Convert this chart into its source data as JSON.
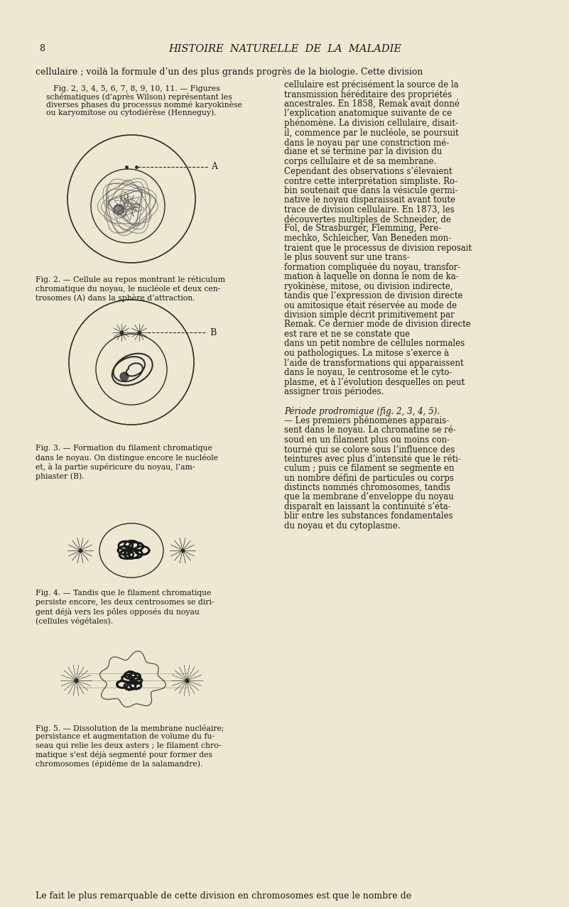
{
  "background_color": "#f0ead8",
  "page_color": "#ede8d2",
  "text_color": "#1a1a1a",
  "line_color": "#2a2a2a",
  "page_number": "8",
  "header": "HISTOIRE  NATURELLE  DE  LA  MALADIE",
  "first_line": "cellulaire ; voilà la formule d’un des plus grands progrès de la biologie. Cette division",
  "caption_fig2_label": "Fig. 2, 3, 4, 5, 6, 7, 8, 9, 10, 11. — Figures",
  "caption_fig2_line2": "schématiques (d’après Wilson) représentant les",
  "caption_fig2_line3": "diverses phases du processus nommé karyokinèse",
  "caption_fig2_line4": "ou karyomitose ou cytodiérèse (Henneguy).",
  "fig2_caption_lines": [
    "Fig. 2. — Cellule au repos montrant le réticulum",
    "chromatique du noyau, le nucléole et deux cen-",
    "trosomes (A) dans la sphère d’attraction."
  ],
  "fig3_caption_lines": [
    "Fig. 3. — Formation du filament chromatique",
    "dans le noyau. On distingue encore le nucléole",
    "et, à la partie supéricure du noyau, l’am-",
    "phiaster (B)."
  ],
  "fig4_caption_lines": [
    "Fig. 4. — Tandis que le filament chromatique",
    "persiste encore, les deux centrosomes se diri-",
    "gent déjà vers les pôles opposés du noyau",
    "(cellules végétales)."
  ],
  "fig5_caption_lines": [
    "Fig. 5. — Dissolution de la membrane nucléaire;",
    "persistance et augmentation de volume du fu-",
    "seau qui relie les deux asters ; le filament chro-",
    "matique s’est déjà segmenté pour former des",
    "chromosomes (épidème de la salamandre)."
  ],
  "right_col_text": [
    "cellulaire est précisément la source de la",
    "transmission héréditaire des propriétés",
    "ancestrales. En 1858, Remak avait donné",
    "l’explication anatomique suivante de ce",
    "phénomène. La division cellulaire, disait-",
    "il, commence par le nucléole, se poursuit",
    "dans le noyau par une constriction mé-",
    "diane et se termine par la division du",
    "corps cellulaire et de sa membrane.",
    "Cependant des observations s’élevaient",
    "contre cette interprétation simpliste. Ro-",
    "bin soutenait que dans la vésicule germi-",
    "native le noyau disparaissait avant toute",
    "trace de division cellulaire. En 1873, les",
    "découvertes multiples de Schneider, de",
    "Fol, de Strasburger, Flemming, Pere-",
    "mechko, Schleicher, Van Beneden mon-",
    "traient que le processus de division reposait",
    "le plus souvent sur une trans-",
    "formation compliquée du noyau, transfor-",
    "mation à laquelle on donna le nom de ka-",
    "ryokinèse, mitose, ou division indirecte,",
    "tandis que l’expression de division directe",
    "ou amitosique était réservée au mode de",
    "division simple décrit primitivement par",
    "Remak. Ce dernier mode de division directe",
    "est rare et ne se constate que",
    "dans un petit nombre de cellules normales",
    "ou pathologiques. La mitose s’exerce à",
    "l’aide de transformations qui apparaissent",
    "dans le noyau, le centrosome et le cyto-",
    "plasme, et à l’évolution desquelles on peut",
    "assigner trois périodes.",
    " ",
    "Période prodromique (fig. 2, 3, 4, 5).",
    "— Les premiers phénomènes apparais-",
    "sent dans le noyau. La chromatine se ré-",
    "soud en un filament plus ou moins con-",
    "tourné qui se colore sous l’influence des",
    "teintures avec plus d’intensité que le réti-",
    "culum ; puis ce filament se segmente en",
    "un nombre défini de particules ou corps",
    "distincts nommés chromosomes, tandis",
    "que la membrane d’enveloppe du noyau",
    "disparaît en laissant la continuité s’éta-",
    "blir entre les substances fondamentales",
    "du noyau et du cytoplasme."
  ],
  "right_col_italic_indices": [
    34
  ],
  "bottom_line": "Le fait le plus remarquable de cette division en chromosomes est que le nombre de",
  "dpi": 100,
  "fig_width": 8.01,
  "fig_height": 12.77
}
